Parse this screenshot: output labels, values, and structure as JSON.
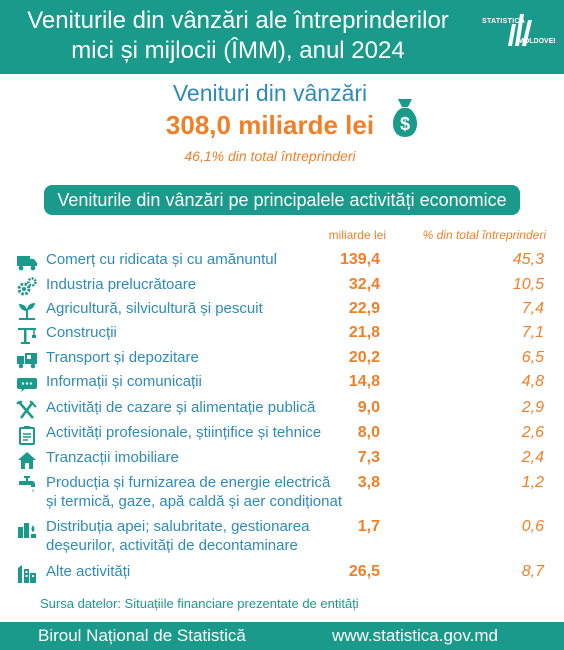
{
  "header": {
    "title_line1": "Veniturile din vânzări ale întreprinderilor",
    "title_line2": "mici și mijlocii (ÎMM), anul 2024",
    "logo_top": "STATISTICA",
    "logo_bottom": "MOLDOVEI"
  },
  "summary": {
    "label": "Venituri din vânzări",
    "value": "308,0 miliarde lei",
    "share": "46,1% din total întreprinderi",
    "icon": "money-bag-icon"
  },
  "section_title": "Veniturile din vânzări pe principalele activități economice",
  "columns": {
    "value_header": "miliarde lei",
    "share_header": "% din total întreprinderi"
  },
  "rows": [
    {
      "icon": "truck-icon",
      "label": "Comerț cu ridicata și cu amănuntul",
      "value": "139,4",
      "share": "45,3"
    },
    {
      "icon": "gears-icon",
      "label": "Industria prelucrătoare",
      "value": "32,4",
      "share": "10,5"
    },
    {
      "icon": "plant-icon",
      "label": "Agricultură, silvicultură și pescuit",
      "value": "22,9",
      "share": "7,4"
    },
    {
      "icon": "crane-icon",
      "label": "Construcții",
      "value": "21,8",
      "share": "7,1"
    },
    {
      "icon": "delivery-truck-icon",
      "label": "Transport și depozitare",
      "value": "20,2",
      "share": "6,5"
    },
    {
      "icon": "chat-bubble-icon",
      "label": "Informații și comunicații",
      "value": "14,8",
      "share": "4,8"
    },
    {
      "icon": "fork-knife-icon",
      "label": "Activități de cazare și alimentație publică",
      "value": "9,0",
      "share": "2,9"
    },
    {
      "icon": "clipboard-icon",
      "label": "Activități profesionale, științifice și tehnice",
      "value": "8,0",
      "share": "2,6"
    },
    {
      "icon": "house-icon",
      "label": "Tranzacții imobiliare",
      "value": "7,3",
      "share": "2,4"
    },
    {
      "icon": "faucet-icon",
      "label": "Producția și furnizarea de energie electrică",
      "label2": "și termică, gaze, apă caldă și aer condiționat",
      "value": "3,8",
      "share": "1,2"
    },
    {
      "icon": "water-treatment-icon",
      "label": "Distribuția apei; salubritate, gestionarea",
      "label2": "deșeurilor, activități de decontaminare",
      "value": "1,7",
      "share": "0,6"
    },
    {
      "icon": "buildings-icon",
      "label": "Alte activități",
      "value": "26,5",
      "share": "8,7"
    }
  ],
  "source": "Sursa datelor: Situațiile financiare prezentate de entități",
  "footer": {
    "org": "Biroul Național de Statistică",
    "url": "www.statistica.gov.md"
  },
  "colors": {
    "teal": "#1a9a8a",
    "blue": "#2e8bb8",
    "orange": "#f07f27"
  }
}
